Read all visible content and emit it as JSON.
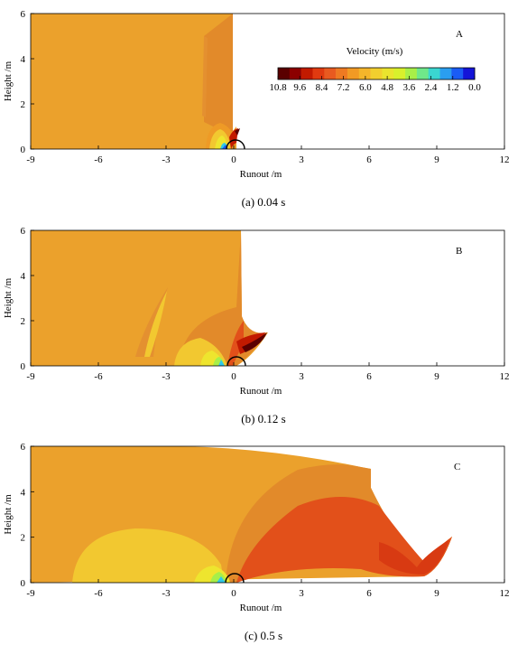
{
  "figure": {
    "legend": {
      "title": "Velocity (m/s)",
      "ticks": [
        "10.8",
        "9.6",
        "8.4",
        "7.2",
        "6.0",
        "4.8",
        "3.6",
        "2.4",
        "1.2",
        "0.0"
      ],
      "colors": [
        "#5a0000",
        "#8c0000",
        "#c21a00",
        "#e03a10",
        "#e85a20",
        "#ee7a22",
        "#f29a24",
        "#f5b52a",
        "#f2cf2e",
        "#eae42e",
        "#d8f02c",
        "#a8ef48",
        "#6fe88a",
        "#3ad6d0",
        "#2a9ef0",
        "#1a5cf5",
        "#1414d8"
      ]
    }
  },
  "chart_data": [
    {
      "type": "heatmap",
      "panel_label": "A",
      "caption": "(a) 0.04 s",
      "xlabel": "Runout /m",
      "ylabel": "Height /m",
      "xlim": [
        -9,
        12
      ],
      "ylim": [
        0,
        6
      ],
      "xticks": [
        "-9",
        "-6",
        "-3",
        "0",
        "3",
        "6",
        "9",
        "12"
      ],
      "yticks": [
        "0",
        "2",
        "4",
        "6"
      ],
      "colorbar_label": "Velocity (m/s)",
      "colorbar_ticks": [
        10.8,
        9.6,
        8.4,
        7.2,
        6.0,
        4.8,
        3.6,
        2.4,
        1.2,
        0.0
      ],
      "colors": {
        "bulk": "#eba12c",
        "mid": "#e28a2a",
        "fast": "#b01000",
        "slow": "#f2d030",
        "cold": "#30c8e8"
      }
    },
    {
      "type": "heatmap",
      "panel_label": "B",
      "caption": "(b) 0.12 s",
      "xlabel": "Runout /m",
      "ylabel": "Height /m",
      "xlim": [
        -9,
        12
      ],
      "ylim": [
        0,
        6
      ],
      "xticks": [
        "-9",
        "-6",
        "-3",
        "0",
        "3",
        "6",
        "9",
        "12"
      ],
      "yticks": [
        "0",
        "2",
        "4",
        "6"
      ],
      "colors": {
        "bulk": "#eba12c",
        "mid": "#e28a2a",
        "fast": "#8c0000",
        "slow": "#f2d030",
        "cold": "#30c8e8"
      }
    },
    {
      "type": "heatmap",
      "panel_label": "C",
      "caption": "(c) 0.5 s",
      "xlabel": "Runout /m",
      "ylabel": "Height /m",
      "xlim": [
        -9,
        12
      ],
      "ylim": [
        0,
        6
      ],
      "xticks": [
        "-9",
        "-6",
        "-3",
        "0",
        "3",
        "6",
        "9",
        "12"
      ],
      "yticks": [
        "0",
        "2",
        "4",
        "6"
      ],
      "colors": {
        "bulk": "#eba12c",
        "mid": "#e28a2a",
        "fast": "#e2501a",
        "slow": "#f2d030",
        "cold": "#30c8e8"
      }
    }
  ]
}
